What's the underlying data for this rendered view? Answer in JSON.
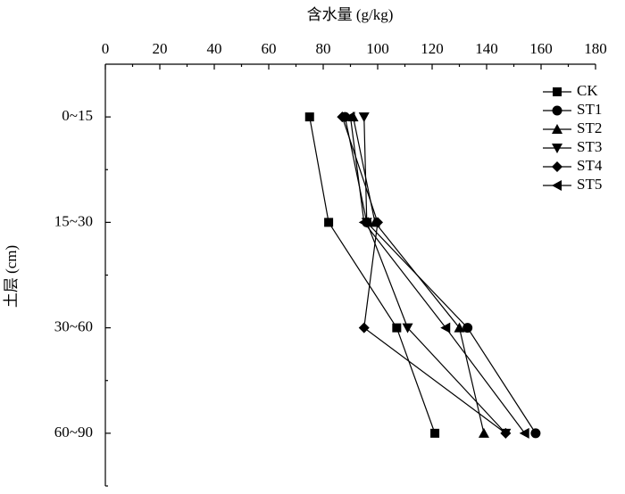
{
  "chart_data": {
    "type": "line",
    "orientation": "horizontal",
    "x_label": "含水量 (g/kg)",
    "y_label": "土层 (cm)",
    "categories": [
      "0~15",
      "15~30",
      "30~60",
      "60~90"
    ],
    "xlim": [
      0,
      180
    ],
    "xticks": [
      0,
      20,
      40,
      60,
      80,
      100,
      120,
      140,
      160,
      180
    ],
    "legend": "upper right",
    "series": [
      {
        "name": "CK",
        "marker": "square",
        "color": "#000000",
        "values": [
          75,
          82,
          107,
          121
        ]
      },
      {
        "name": "ST1",
        "marker": "circle",
        "color": "#000000",
        "values": [
          88,
          96,
          133,
          158
        ]
      },
      {
        "name": "ST2",
        "marker": "triangle-up",
        "color": "#000000",
        "values": [
          91,
          99,
          130,
          139
        ]
      },
      {
        "name": "ST3",
        "marker": "triangle-down",
        "color": "#000000",
        "values": [
          95,
          96,
          111,
          147
        ]
      },
      {
        "name": "ST4",
        "marker": "diamond",
        "color": "#000000",
        "values": [
          87,
          100,
          95,
          147
        ]
      },
      {
        "name": "ST5",
        "marker": "triangle-left",
        "color": "#000000",
        "values": [
          90,
          95,
          125,
          154
        ]
      }
    ]
  }
}
